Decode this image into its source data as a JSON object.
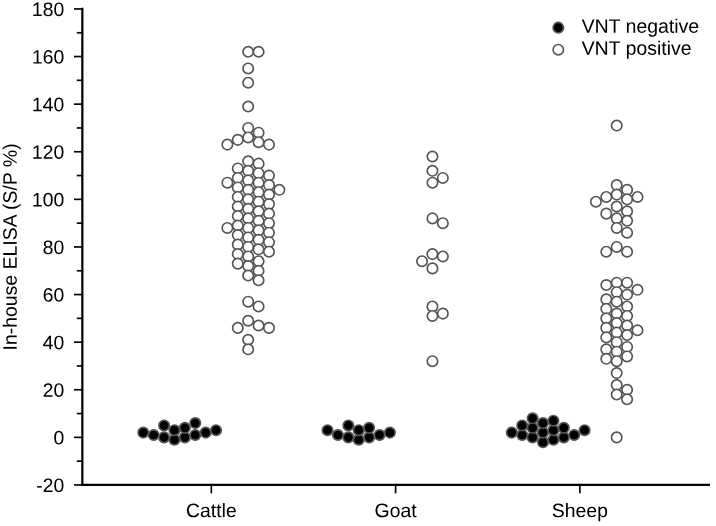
{
  "chart_data": {
    "type": "scatter",
    "ylabel": "In-house ELISA (S/P %)",
    "categories": [
      "Cattle",
      "Goat",
      "Sheep"
    ],
    "ylim": [
      -20,
      180
    ],
    "yticks": [
      -20,
      0,
      20,
      40,
      60,
      80,
      100,
      120,
      140,
      160,
      180
    ],
    "grid": false,
    "legend": "top right",
    "marker": "circle",
    "series": [
      {
        "name": "VNT negative",
        "color": "#000000",
        "x": [
          "Cattle",
          "Cattle",
          "Cattle",
          "Cattle",
          "Cattle",
          "Cattle",
          "Cattle",
          "Cattle",
          "Cattle",
          "Cattle",
          "Cattle",
          "Cattle",
          "Goat",
          "Goat",
          "Goat",
          "Goat",
          "Goat",
          "Goat",
          "Goat",
          "Goat",
          "Goat",
          "Goat",
          "Sheep",
          "Sheep",
          "Sheep",
          "Sheep",
          "Sheep",
          "Sheep",
          "Sheep",
          "Sheep",
          "Sheep",
          "Sheep",
          "Sheep",
          "Sheep",
          "Sheep",
          "Sheep",
          "Sheep",
          "Sheep"
        ],
        "values": [
          -1,
          0,
          0,
          1,
          1,
          2,
          2,
          3,
          3,
          4,
          5,
          6,
          -1,
          0,
          0,
          1,
          1,
          2,
          3,
          3,
          4,
          5,
          -2,
          -1,
          0,
          0,
          1,
          1,
          2,
          2,
          3,
          3,
          4,
          4,
          5,
          6,
          7,
          8
        ]
      },
      {
        "name": "VNT positive",
        "color": "#ffffff",
        "x": [
          "Cattle",
          "Cattle",
          "Cattle",
          "Cattle",
          "Cattle",
          "Cattle",
          "Cattle",
          "Cattle",
          "Cattle",
          "Cattle",
          "Cattle",
          "Cattle",
          "Cattle",
          "Cattle",
          "Cattle",
          "Cattle",
          "Cattle",
          "Cattle",
          "Cattle",
          "Cattle",
          "Cattle",
          "Cattle",
          "Cattle",
          "Cattle",
          "Cattle",
          "Cattle",
          "Cattle",
          "Cattle",
          "Cattle",
          "Cattle",
          "Cattle",
          "Cattle",
          "Cattle",
          "Cattle",
          "Cattle",
          "Cattle",
          "Cattle",
          "Cattle",
          "Cattle",
          "Cattle",
          "Cattle",
          "Cattle",
          "Cattle",
          "Cattle",
          "Cattle",
          "Cattle",
          "Cattle",
          "Cattle",
          "Cattle",
          "Cattle",
          "Cattle",
          "Cattle",
          "Cattle",
          "Cattle",
          "Cattle",
          "Cattle",
          "Cattle",
          "Cattle",
          "Cattle",
          "Cattle",
          "Cattle",
          "Cattle",
          "Cattle",
          "Cattle",
          "Cattle",
          "Cattle",
          "Cattle",
          "Cattle",
          "Cattle",
          "Goat",
          "Goat",
          "Goat",
          "Goat",
          "Goat",
          "Goat",
          "Goat",
          "Goat",
          "Goat",
          "Goat",
          "Goat",
          "Goat",
          "Goat",
          "Goat",
          "Sheep",
          "Sheep",
          "Sheep",
          "Sheep",
          "Sheep",
          "Sheep",
          "Sheep",
          "Sheep",
          "Sheep",
          "Sheep",
          "Sheep",
          "Sheep",
          "Sheep",
          "Sheep",
          "Sheep",
          "Sheep",
          "Sheep",
          "Sheep",
          "Sheep",
          "Sheep",
          "Sheep",
          "Sheep",
          "Sheep",
          "Sheep",
          "Sheep",
          "Sheep",
          "Sheep",
          "Sheep",
          "Sheep",
          "Sheep",
          "Sheep",
          "Sheep",
          "Sheep",
          "Sheep",
          "Sheep",
          "Sheep",
          "Sheep",
          "Sheep",
          "Sheep",
          "Sheep",
          "Sheep",
          "Sheep",
          "Sheep",
          "Sheep",
          "Sheep",
          "Sheep",
          "Sheep",
          "Sheep",
          "Sheep",
          "Sheep",
          "Sheep"
        ],
        "values": [
          162,
          162,
          155,
          149,
          139,
          130,
          128,
          126,
          125,
          124,
          123,
          123,
          116,
          115,
          113,
          112,
          111,
          110,
          109,
          108,
          107,
          107,
          106,
          105,
          104,
          104,
          103,
          102,
          101,
          100,
          99,
          98,
          97,
          96,
          95,
          94,
          93,
          92,
          91,
          90,
          89,
          88,
          88,
          87,
          86,
          85,
          84,
          83,
          82,
          81,
          80,
          79,
          78,
          77,
          76,
          74,
          73,
          72,
          70,
          68,
          66,
          57,
          55,
          49,
          47,
          46,
          46,
          41,
          37,
          118,
          112,
          109,
          107,
          92,
          90,
          77,
          76,
          74,
          71,
          55,
          52,
          51,
          32,
          131,
          106,
          104,
          102,
          101,
          101,
          100,
          99,
          97,
          95,
          94,
          92,
          91,
          88,
          86,
          80,
          78,
          78,
          65,
          65,
          64,
          62,
          61,
          60,
          58,
          57,
          55,
          54,
          52,
          51,
          50,
          48,
          47,
          46,
          45,
          44,
          43,
          42,
          40,
          38,
          37,
          36,
          34,
          33,
          32,
          27,
          22,
          20,
          18,
          16,
          0
        ]
      }
    ]
  }
}
